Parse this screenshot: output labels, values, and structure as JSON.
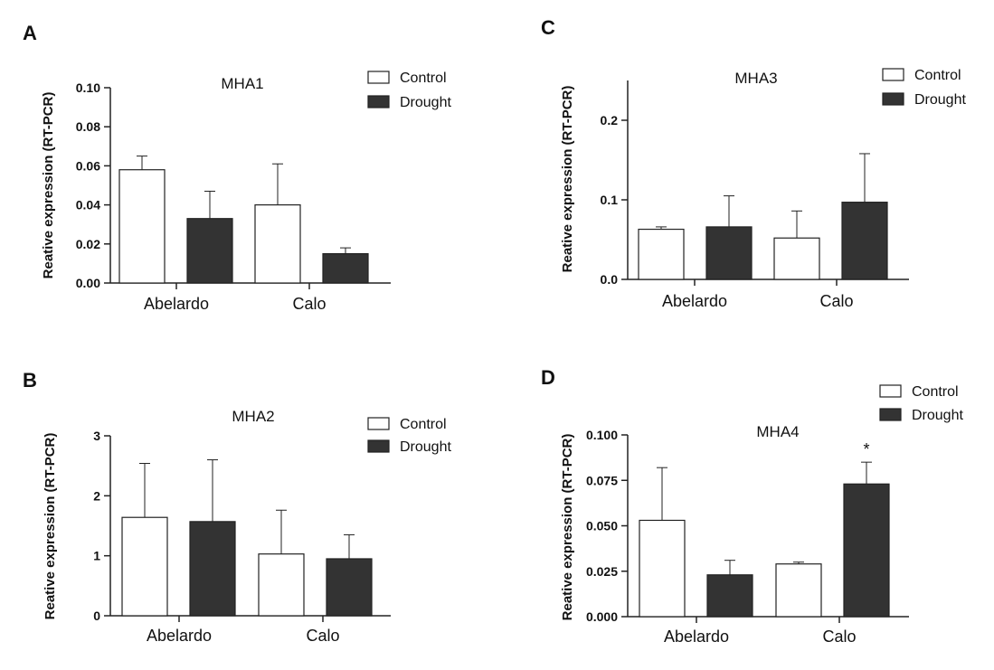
{
  "colors": {
    "control": "#ffffff",
    "drought": "#333333",
    "axis": "#222222"
  },
  "chart_data": [
    {
      "panel": "A",
      "type": "bar",
      "title": "MHA1",
      "ylabel": "Reative expression (RT-PCR)",
      "categories": [
        "Abelardo",
        "Calo"
      ],
      "ylim": [
        0,
        0.1
      ],
      "yticks": [
        0.0,
        0.02,
        0.04,
        0.06,
        0.08,
        0.1
      ],
      "ytick_labels": [
        "0.00",
        "0.02",
        "0.04",
        "0.06",
        "0.08",
        "0.10"
      ],
      "legend": [
        "Control",
        "Drought"
      ],
      "legend_position": "top-right",
      "series": [
        {
          "name": "Control",
          "values": [
            0.058,
            0.04
          ],
          "errors": [
            0.007,
            0.021
          ]
        },
        {
          "name": "Drought",
          "values": [
            0.033,
            0.015
          ],
          "errors": [
            0.014,
            0.003
          ]
        }
      ],
      "annotations": []
    },
    {
      "panel": "B",
      "type": "bar",
      "title": "MHA2",
      "ylabel": "Reative expression (RT-PCR)",
      "categories": [
        "Abelardo",
        "Calo"
      ],
      "ylim": [
        0,
        3
      ],
      "yticks": [
        0,
        1,
        2,
        3
      ],
      "ytick_labels": [
        "0",
        "1",
        "2",
        "3"
      ],
      "legend": [
        "Control",
        "Drought"
      ],
      "legend_position": "top-right",
      "series": [
        {
          "name": "Control",
          "values": [
            1.64,
            1.03
          ],
          "errors": [
            0.9,
            0.73
          ]
        },
        {
          "name": "Drought",
          "values": [
            1.57,
            0.95
          ],
          "errors": [
            1.03,
            0.4
          ]
        }
      ],
      "annotations": []
    },
    {
      "panel": "C",
      "type": "bar",
      "title": "MHA3",
      "ylabel": "Reative expression (RT-PCR)",
      "categories": [
        "Abelardo",
        "Calo"
      ],
      "ylim": [
        0,
        0.25
      ],
      "yticks": [
        0.0,
        0.1,
        0.2
      ],
      "ytick_labels": [
        "0.0",
        "0.1",
        "0.2"
      ],
      "legend": [
        "Control",
        "Drought"
      ],
      "legend_position": "top-right",
      "series": [
        {
          "name": "Control",
          "values": [
            0.063,
            0.052
          ],
          "errors": [
            0.003,
            0.034
          ]
        },
        {
          "name": "Drought",
          "values": [
            0.066,
            0.097
          ],
          "errors": [
            0.039,
            0.061
          ]
        }
      ],
      "annotations": []
    },
    {
      "panel": "D",
      "type": "bar",
      "title": "MHA4",
      "ylabel": "Reative expression (RT-PCR)",
      "categories": [
        "Abelardo",
        "Calo"
      ],
      "ylim": [
        0,
        0.1
      ],
      "yticks": [
        0.0,
        0.025,
        0.05,
        0.075,
        0.1
      ],
      "ytick_labels": [
        "0.000",
        "0.025",
        "0.050",
        "0.075",
        "0.100"
      ],
      "legend": [
        "Control",
        "Drought"
      ],
      "legend_position": "top-right",
      "series": [
        {
          "name": "Control",
          "values": [
            0.053,
            0.029
          ],
          "errors": [
            0.029,
            0.001
          ]
        },
        {
          "name": "Drought",
          "values": [
            0.023,
            0.073
          ],
          "errors": [
            0.008,
            0.012
          ]
        }
      ],
      "annotations": [
        {
          "text": "*",
          "category": "Calo",
          "series": "Drought"
        }
      ]
    }
  ]
}
